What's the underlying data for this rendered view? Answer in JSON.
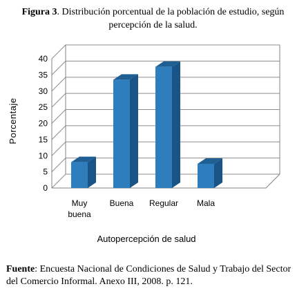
{
  "caption": {
    "label": "Figura 3",
    "text_line1": ". Distribución porcentual de la población de estudio, según",
    "text_line2": "percepción de la salud."
  },
  "chart_data": {
    "type": "bar",
    "categories": [
      "Muy buena",
      "Buena",
      "Regular",
      "Mala"
    ],
    "category_lines": [
      [
        "Muy",
        "buena"
      ],
      [
        "Buena"
      ],
      [
        "Regular"
      ],
      [
        "Mala"
      ]
    ],
    "values": [
      8,
      33.5,
      37.5,
      7.5
    ],
    "ylabel": "Porcentaje",
    "xlabel": "Autopercepción de salud",
    "ylim": [
      0,
      40
    ],
    "yticks": [
      0,
      5,
      10,
      15,
      20,
      25,
      30,
      35,
      40
    ],
    "grid": true,
    "bar_color": "#2e7dbd",
    "bar_top_color": "#1f5f93",
    "bar_side_color": "#1a5486"
  },
  "source": {
    "label": "Fuente",
    "text": ": Encuesta Nacional de Condiciones de Salud y Trabajo del Sector del Comercio Informal.  Anexo III, 2008. p. 121."
  }
}
